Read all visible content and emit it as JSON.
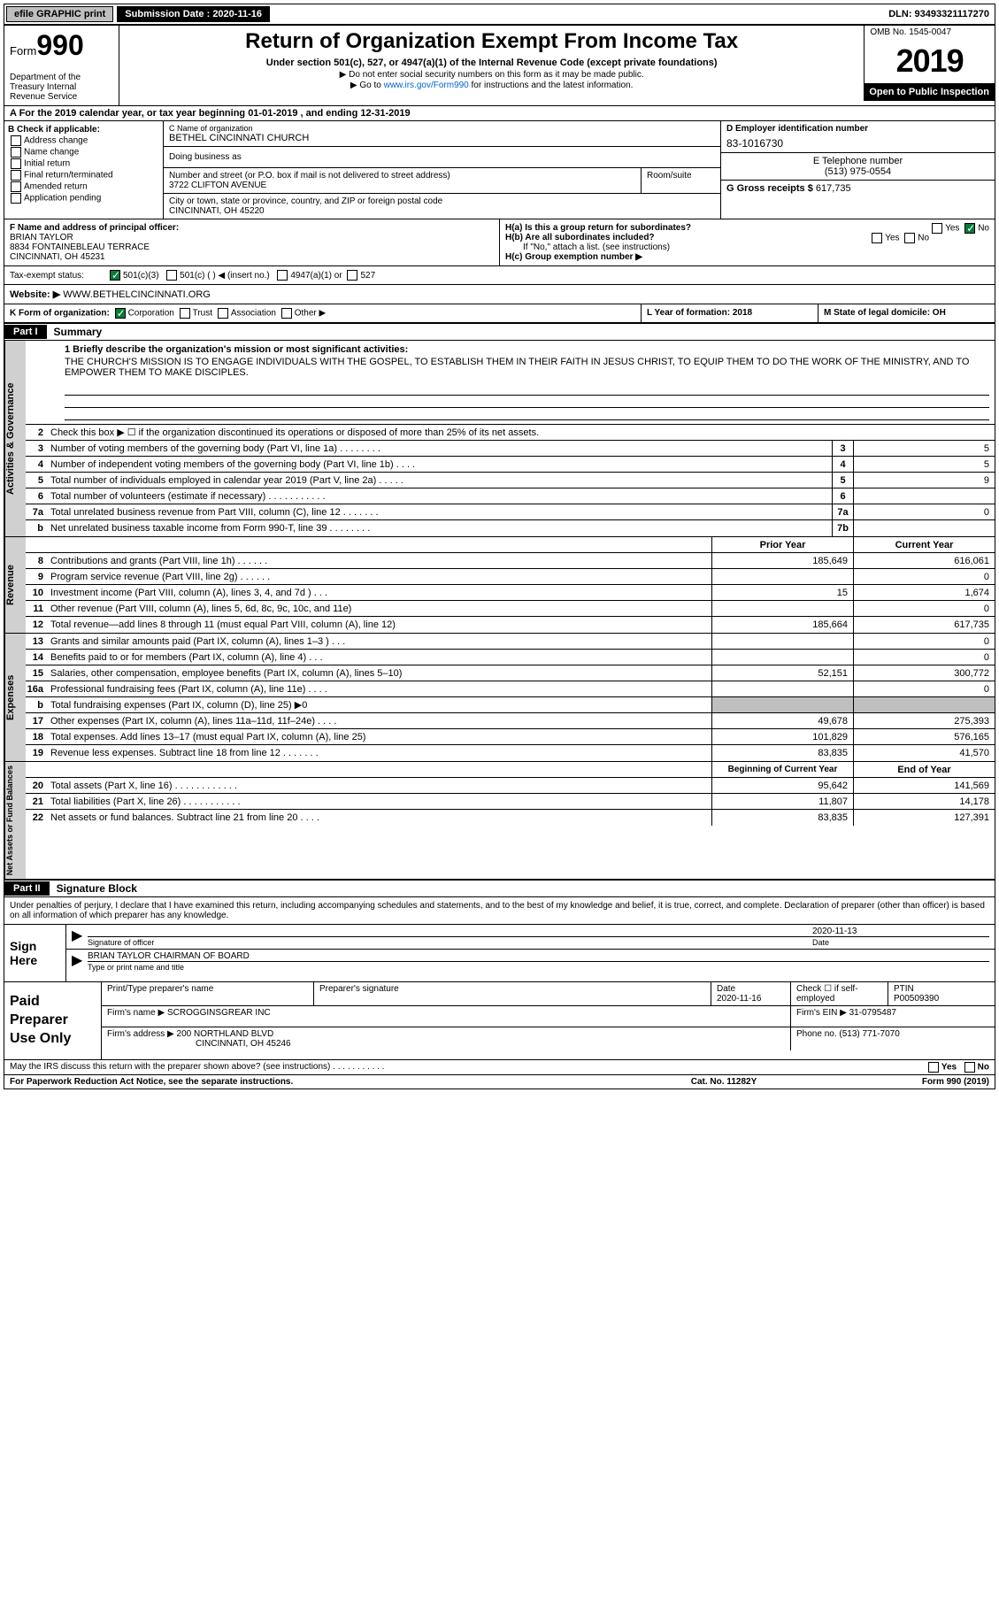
{
  "topbar": {
    "efile": "efile GRAPHIC print",
    "sub_label": "Submission Date : 2020-11-16",
    "dln": "DLN: 93493321117270"
  },
  "header": {
    "form_word": "Form",
    "form_num": "990",
    "dept": "Department of the Treasury\nInternal Revenue Service",
    "title": "Return of Organization Exempt From Income Tax",
    "sub1": "Under section 501(c), 527, or 4947(a)(1) of the Internal Revenue Code (except private foundations)",
    "sub2": "▶ Do not enter social security numbers on this form as it may be made public.",
    "sub3_pre": "▶ Go to ",
    "sub3_link": "www.irs.gov/Form990",
    "sub3_post": " for instructions and the latest information.",
    "omb": "OMB No. 1545-0047",
    "year": "2019",
    "public": "Open to Public Inspection"
  },
  "section_a": "A For the 2019 calendar year, or tax year beginning 01-01-2019    , and ending 12-31-2019",
  "box_b": {
    "label": "B Check if applicable:",
    "opts": [
      "Address change",
      "Name change",
      "Initial return",
      "Final return/terminated",
      "Amended return",
      "Application pending"
    ]
  },
  "box_c": {
    "name_label": "C Name of organization",
    "name": "BETHEL CINCINNATI CHURCH",
    "dba": "Doing business as",
    "addr_label": "Number and street (or P.O. box if mail is not delivered to street address)",
    "addr": "3722 CLIFTON AVENUE",
    "room_label": "Room/suite",
    "city_label": "City or town, state or province, country, and ZIP or foreign postal code",
    "city": "CINCINNATI, OH  45220"
  },
  "box_d": {
    "label": "D Employer identification number",
    "val": "83-1016730"
  },
  "box_e": {
    "label": "E Telephone number",
    "val": "(513) 975-0554"
  },
  "box_g": {
    "label": "G Gross receipts $",
    "val": "617,735"
  },
  "box_f": {
    "label": "F  Name and address of principal officer:",
    "name": "BRIAN TAYLOR",
    "addr1": "8834 FONTAINEBLEAU TERRACE",
    "addr2": "CINCINNATI, OH  45231"
  },
  "box_h": {
    "ha": "H(a)  Is this a group return for subordinates?",
    "hb": "H(b)  Are all subordinates included?",
    "hb_note": "If \"No,\" attach a list. (see instructions)",
    "hc": "H(c)  Group exemption number ▶",
    "yes": "Yes",
    "no": "No"
  },
  "tax_exempt": {
    "label": "Tax-exempt status:",
    "c3": "501(c)(3)",
    "c": "501(c) (  ) ◀ (insert no.)",
    "a1": "4947(a)(1) or",
    "527": "527"
  },
  "website": {
    "label": "Website: ▶",
    "val": "WWW.BETHELCINCINNATI.ORG"
  },
  "klm": {
    "k": "K Form of organization:",
    "k_corp": "Corporation",
    "k_trust": "Trust",
    "k_assoc": "Association",
    "k_other": "Other ▶",
    "l": "L Year of formation: 2018",
    "m": "M State of legal domicile: OH"
  },
  "part1": {
    "hdr": "Part I",
    "title": "Summary"
  },
  "mission": {
    "label": "1  Briefly describe the organization's mission or most significant activities:",
    "text": "THE CHURCH'S MISSION IS TO ENGAGE INDIVIDUALS WITH THE GOSPEL, TO ESTABLISH THEM IN THEIR FAITH IN JESUS CHRIST, TO EQUIP THEM TO DO THE WORK OF THE MINISTRY, AND TO EMPOWER THEM TO MAKE DISCIPLES."
  },
  "vert": {
    "ag": "Activities & Governance",
    "rev": "Revenue",
    "exp": "Expenses",
    "na": "Net Assets or Fund Balances"
  },
  "lines_ag": [
    {
      "n": "2",
      "t": "Check this box ▶ ☐  if the organization discontinued its operations or disposed of more than 25% of its net assets."
    },
    {
      "n": "3",
      "t": "Number of voting members of the governing body (Part VI, line 1a)  .    .    .    .    .    .    .    .",
      "box": "3",
      "v": "5"
    },
    {
      "n": "4",
      "t": "Number of independent voting members of the governing body (Part VI, line 1b)  .    .    .    .",
      "box": "4",
      "v": "5"
    },
    {
      "n": "5",
      "t": "Total number of individuals employed in calendar year 2019 (Part V, line 2a)  .    .    .    .    .",
      "box": "5",
      "v": "9"
    },
    {
      "n": "6",
      "t": "Total number of volunteers (estimate if necessary)    .    .    .    .    .    .    .    .    .    .    .",
      "box": "6",
      "v": ""
    },
    {
      "n": "7a",
      "t": "Total unrelated business revenue from Part VIII, column (C), line 12   .    .    .    .    .    .    .",
      "box": "7a",
      "v": "0"
    },
    {
      "n": "b",
      "t": "Net unrelated business taxable income from Form 990-T, line 39   .    .    .    .    .    .    .    .",
      "box": "7b",
      "v": ""
    }
  ],
  "col_hdrs": {
    "py": "Prior Year",
    "cy": "Current Year"
  },
  "lines_rev": [
    {
      "n": "8",
      "t": "Contributions and grants (Part VIII, line 1h)   .    .    .    .    .    .",
      "py": "185,649",
      "cy": "616,061"
    },
    {
      "n": "9",
      "t": "Program service revenue (Part VIII, line 2g)   .    .    .    .    .    .",
      "py": "",
      "cy": "0"
    },
    {
      "n": "10",
      "t": "Investment income (Part VIII, column (A), lines 3, 4, and 7d )   .    .    .",
      "py": "15",
      "cy": "1,674"
    },
    {
      "n": "11",
      "t": "Other revenue (Part VIII, column (A), lines 5, 6d, 8c, 9c, 10c, and 11e)",
      "py": "",
      "cy": "0"
    },
    {
      "n": "12",
      "t": "Total revenue—add lines 8 through 11 (must equal Part VIII, column (A), line 12)",
      "py": "185,664",
      "cy": "617,735"
    }
  ],
  "lines_exp": [
    {
      "n": "13",
      "t": "Grants and similar amounts paid (Part IX, column (A), lines 1–3 )  .    .    .",
      "py": "",
      "cy": "0"
    },
    {
      "n": "14",
      "t": "Benefits paid to or for members (Part IX, column (A), line 4)  .    .    .",
      "py": "",
      "cy": "0"
    },
    {
      "n": "15",
      "t": "Salaries, other compensation, employee benefits (Part IX, column (A), lines 5–10)",
      "py": "52,151",
      "cy": "300,772"
    },
    {
      "n": "16a",
      "t": "Professional fundraising fees (Part IX, column (A), line 11e)  .    .    .    .",
      "py": "",
      "cy": "0"
    },
    {
      "n": "b",
      "t": "Total fundraising expenses (Part IX, column (D), line 25) ▶0",
      "py": "shaded",
      "cy": "shaded"
    },
    {
      "n": "17",
      "t": "Other expenses (Part IX, column (A), lines 11a–11d, 11f–24e)   .    .    .    .",
      "py": "49,678",
      "cy": "275,393"
    },
    {
      "n": "18",
      "t": "Total expenses. Add lines 13–17 (must equal Part IX, column (A), line 25)",
      "py": "101,829",
      "cy": "576,165"
    },
    {
      "n": "19",
      "t": "Revenue less expenses. Subtract line 18 from line 12  .    .    .    .    .    .    .",
      "py": "83,835",
      "cy": "41,570"
    }
  ],
  "na_hdrs": {
    "b": "Beginning of Current Year",
    "e": "End of Year"
  },
  "lines_na": [
    {
      "n": "20",
      "t": "Total assets (Part X, line 16)  .    .    .    .    .    .    .    .    .    .    .    .",
      "py": "95,642",
      "cy": "141,569"
    },
    {
      "n": "21",
      "t": "Total liabilities (Part X, line 26)  .    .    .    .    .    .    .    .    .    .    .",
      "py": "11,807",
      "cy": "14,178"
    },
    {
      "n": "22",
      "t": "Net assets or fund balances. Subtract line 21 from line 20   .    .    .    .",
      "py": "83,835",
      "cy": "127,391"
    }
  ],
  "part2": {
    "hdr": "Part II",
    "title": "Signature Block"
  },
  "sig_pen": "Under penalties of perjury, I declare that I have examined this return, including accompanying schedules and statements, and to the best of my knowledge and belief, it is true, correct, and complete. Declaration of preparer (other than officer) is based on all information of which preparer has any knowledge.",
  "sign_here": "Sign Here",
  "sig": {
    "off_label": "Signature of officer",
    "date_label": "Date",
    "date": "2020-11-13",
    "name": "BRIAN TAYLOR  CHAIRMAN OF BOARD",
    "name_label": "Type or print name and title"
  },
  "paid": {
    "label": "Paid Preparer Use Only",
    "r1": {
      "c1": "Print/Type preparer's name",
      "c2": "Preparer's signature",
      "c3": "Date",
      "c3v": "2020-11-16",
      "c4": "Check ☐  if self-employed",
      "c5": "PTIN",
      "c5v": "P00509390"
    },
    "r2": {
      "c1": "Firm's name    ▶",
      "c1v": "SCROGGINSGREAR INC",
      "c2": "Firm's EIN ▶",
      "c2v": "31-0795487"
    },
    "r3": {
      "c1": "Firm's address ▶",
      "c1v": "200 NORTHLAND BLVD",
      "c2": "Phone no.",
      "c2v": "(513) 771-7070"
    },
    "r3b": "CINCINNATI, OH  45246"
  },
  "may_irs": "May the IRS discuss this return with the preparer shown above? (see instructions)   .    .    .    .    .    .    .    .    .    .    .",
  "footer": {
    "l": "For Paperwork Reduction Act Notice, see the separate instructions.",
    "m": "Cat. No. 11282Y",
    "r": "Form 990 (2019)"
  }
}
